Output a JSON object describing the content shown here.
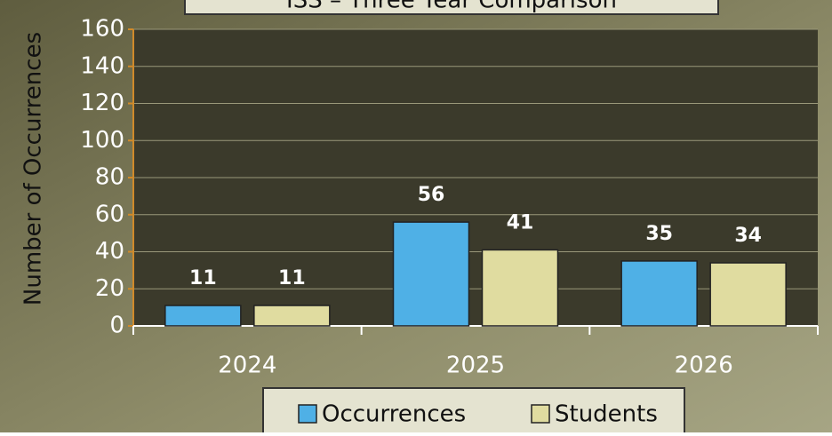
{
  "chart_data": {
    "type": "bar",
    "title": "ISS – Three Year Comparison",
    "y_label": "Number of Occurrences",
    "categories": [
      "2024",
      "2025",
      "2026"
    ],
    "series": [
      {
        "name": "Occurrences",
        "color": "#4fb0e6",
        "values": [
          11,
          56,
          35
        ]
      },
      {
        "name": "Students",
        "color": "#e0dca0",
        "values": [
          11,
          41,
          34
        ]
      }
    ],
    "ylim": [
      0,
      160
    ],
    "yticks": [
      0,
      20,
      40,
      60,
      80,
      100,
      120,
      140,
      160
    ],
    "grid": true,
    "legend": "bottom"
  }
}
